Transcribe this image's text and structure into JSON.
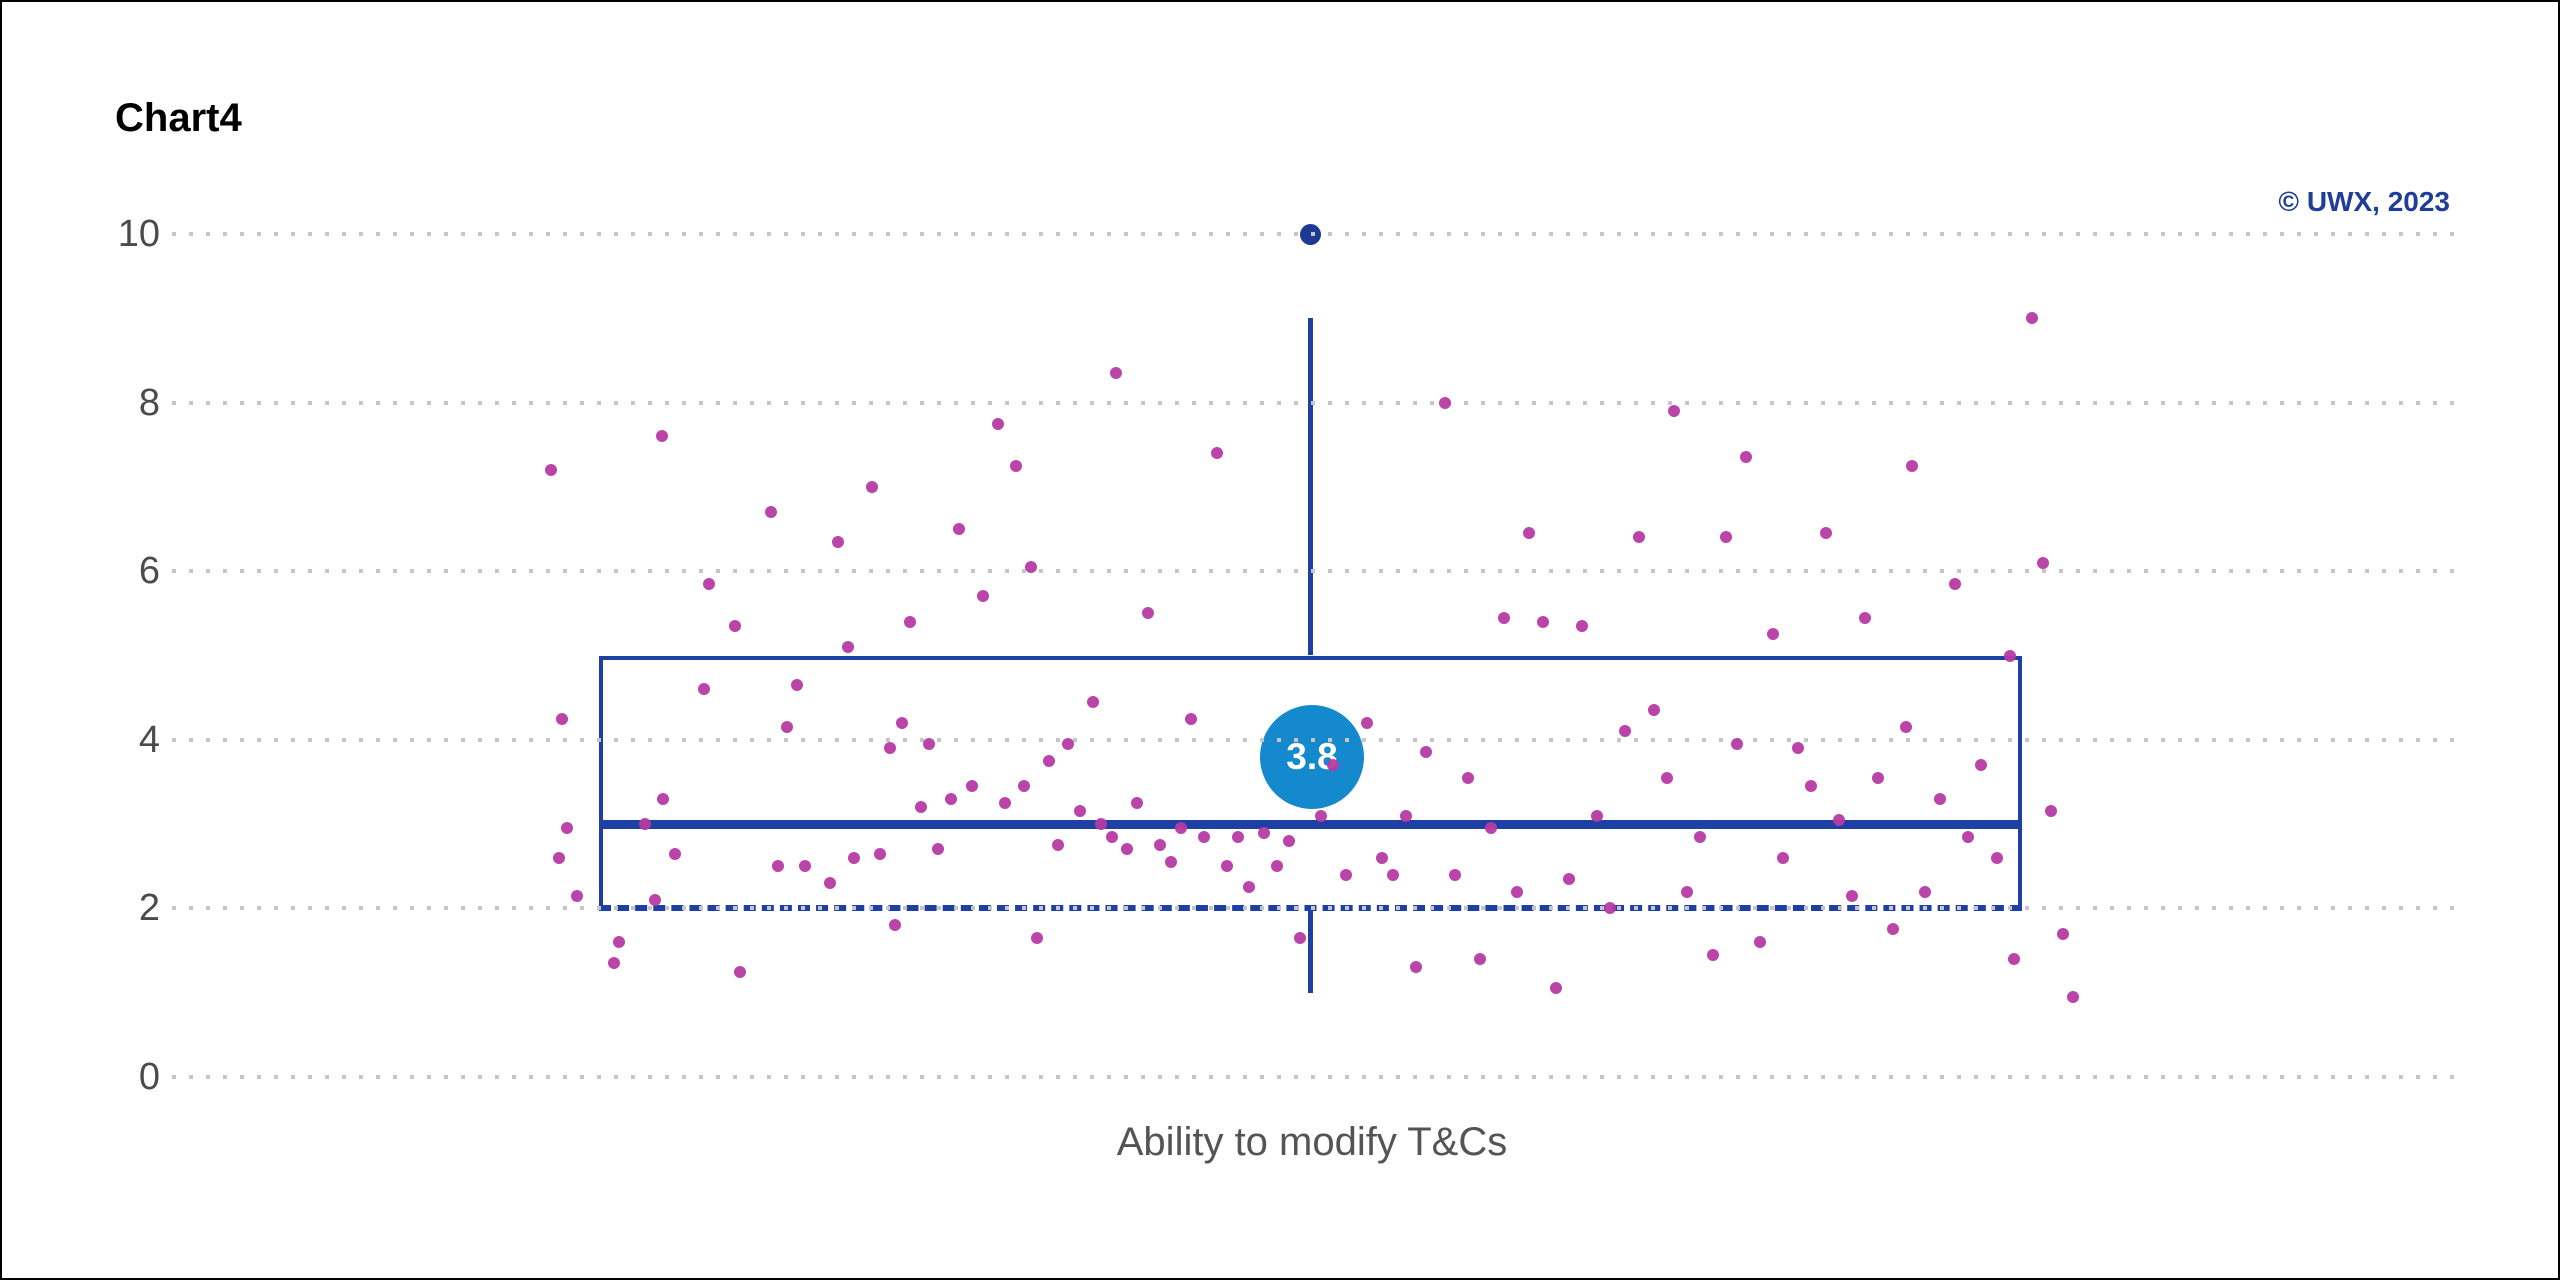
{
  "header": {
    "title": "Chart4",
    "copyright": "© UWX, 2023"
  },
  "colors": {
    "box_blue": "#1e3fa4",
    "outlier_navy": "#1c3a93",
    "mean_fill": "#1489ce",
    "mean_text": "#ffffff",
    "scatter_magenta": "#b63aa3",
    "gridline_gray": "#c6c6c6",
    "tick_label_gray": "#4b4b4b",
    "xlabel_gray": "#545454",
    "copyright_blue": "#1f3d99",
    "title_black": "#000000"
  },
  "chart_data": {
    "type": "boxplot",
    "title": "Chart4",
    "xlabel": "Ability to modify T&Cs",
    "ylabel": "",
    "ylim": [
      0,
      10
    ],
    "yticks": [
      0,
      2,
      4,
      6,
      8,
      10
    ],
    "grid": "dotted-horizontal",
    "legend": "none",
    "box": {
      "whisker_low": 1,
      "q1": 2,
      "median": 3,
      "q3": 5,
      "whisker_high": 9,
      "mean": 3.8,
      "mean_label": "3.8",
      "outliers": [
        10
      ]
    },
    "jitter_points_x_value": [
      [
        549,
        7.2
      ],
      [
        560,
        4.25
      ],
      [
        565,
        2.95
      ],
      [
        557,
        2.6
      ],
      [
        575,
        2.15
      ],
      [
        617,
        1.6
      ],
      [
        612,
        1.35
      ],
      [
        660,
        7.6
      ],
      [
        643,
        3.0
      ],
      [
        661,
        3.3
      ],
      [
        653,
        2.1
      ],
      [
        673,
        2.65
      ],
      [
        707,
        5.85
      ],
      [
        733,
        5.35
      ],
      [
        738,
        1.25
      ],
      [
        769,
        6.7
      ],
      [
        776,
        2.5
      ],
      [
        785,
        4.15
      ],
      [
        702,
        4.6
      ],
      [
        795,
        4.65
      ],
      [
        803,
        2.5
      ],
      [
        828,
        2.3
      ],
      [
        836,
        6.35
      ],
      [
        846,
        5.1
      ],
      [
        852,
        2.6
      ],
      [
        870,
        7.0
      ],
      [
        878,
        2.65
      ],
      [
        888,
        3.9
      ],
      [
        900,
        4.2
      ],
      [
        893,
        1.8
      ],
      [
        908,
        5.4
      ],
      [
        919,
        3.2
      ],
      [
        927,
        3.95
      ],
      [
        936,
        2.7
      ],
      [
        949,
        3.3
      ],
      [
        957,
        6.5
      ],
      [
        970,
        3.45
      ],
      [
        981,
        5.7
      ],
      [
        996,
        7.75
      ],
      [
        1003,
        3.25
      ],
      [
        1014,
        7.25
      ],
      [
        1022,
        3.45
      ],
      [
        1029,
        6.05
      ],
      [
        1035,
        1.65
      ],
      [
        1047,
        3.75
      ],
      [
        1056,
        2.75
      ],
      [
        1066,
        3.95
      ],
      [
        1078,
        3.15
      ],
      [
        1091,
        4.45
      ],
      [
        1099,
        3.0
      ],
      [
        1110,
        2.85
      ],
      [
        1114,
        8.35
      ],
      [
        1125,
        2.7
      ],
      [
        1135,
        3.25
      ],
      [
        1146,
        5.5
      ],
      [
        1158,
        2.75
      ],
      [
        1169,
        2.55
      ],
      [
        1179,
        2.95
      ],
      [
        1189,
        4.25
      ],
      [
        1202,
        2.85
      ],
      [
        1215,
        7.4
      ],
      [
        1225,
        2.5
      ],
      [
        1236,
        2.85
      ],
      [
        1247,
        2.25
      ],
      [
        1262,
        2.9
      ],
      [
        1275,
        2.5
      ],
      [
        1287,
        2.8
      ],
      [
        1298,
        1.65
      ],
      [
        1319,
        3.1
      ],
      [
        1331,
        3.7
      ],
      [
        1344,
        2.4
      ],
      [
        1365,
        4.2
      ],
      [
        1380,
        2.6
      ],
      [
        1391,
        2.4
      ],
      [
        1404,
        3.1
      ],
      [
        1414,
        1.3
      ],
      [
        1424,
        3.85
      ],
      [
        1443,
        8.0
      ],
      [
        1453,
        2.4
      ],
      [
        1466,
        3.55
      ],
      [
        1478,
        1.4
      ],
      [
        1489,
        2.95
      ],
      [
        1502,
        5.45
      ],
      [
        1515,
        2.2
      ],
      [
        1527,
        6.45
      ],
      [
        1541,
        5.4
      ],
      [
        1554,
        1.05
      ],
      [
        1567,
        2.35
      ],
      [
        1580,
        5.35
      ],
      [
        1595,
        3.1
      ],
      [
        1608,
        2.0
      ],
      [
        1623,
        4.1
      ],
      [
        1637,
        6.4
      ],
      [
        1652,
        4.35
      ],
      [
        1665,
        3.55
      ],
      [
        1672,
        7.9
      ],
      [
        1685,
        2.2
      ],
      [
        1698,
        2.85
      ],
      [
        1711,
        1.45
      ],
      [
        1724,
        6.4
      ],
      [
        1735,
        3.95
      ],
      [
        1744,
        7.35
      ],
      [
        1758,
        1.6
      ],
      [
        1771,
        5.25
      ],
      [
        1781,
        2.6
      ],
      [
        1796,
        3.9
      ],
      [
        1809,
        3.45
      ],
      [
        1824,
        6.45
      ],
      [
        1837,
        3.05
      ],
      [
        1850,
        2.15
      ],
      [
        1863,
        5.45
      ],
      [
        1876,
        3.55
      ],
      [
        1891,
        1.75
      ],
      [
        1904,
        4.15
      ],
      [
        1910,
        7.25
      ],
      [
        1923,
        2.2
      ],
      [
        1938,
        3.3
      ],
      [
        1953,
        5.85
      ],
      [
        1966,
        2.85
      ],
      [
        1979,
        3.7
      ],
      [
        1995,
        2.6
      ],
      [
        2008,
        5.0
      ],
      [
        2012,
        1.4
      ],
      [
        2030,
        9.0
      ],
      [
        2041,
        6.1
      ],
      [
        2049,
        3.15
      ],
      [
        2061,
        1.7
      ],
      [
        2071,
        0.95
      ]
    ]
  }
}
